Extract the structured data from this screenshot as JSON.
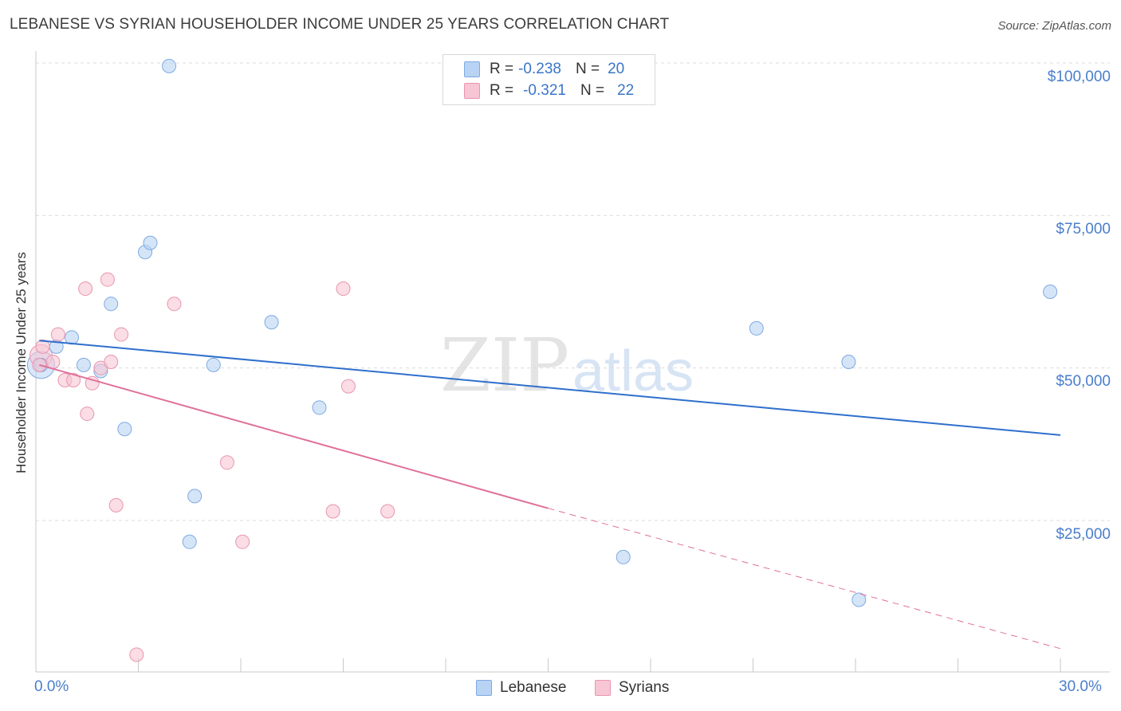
{
  "title": "LEBANESE VS SYRIAN HOUSEHOLDER INCOME UNDER 25 YEARS CORRELATION CHART",
  "source": "Source: ZipAtlas.com",
  "watermark": {
    "zip": "ZIP",
    "atlas": "atlas"
  },
  "colors": {
    "lebanese_fill": "#b9d3f4",
    "lebanese_stroke": "#7eaae3",
    "lebanese_line": "#2f6fcc",
    "syrians_fill": "#f7c6d4",
    "syrians_stroke": "#e996b0",
    "syrians_line": "#e0709a",
    "tick_text": "#4a7ecb"
  },
  "legend": {
    "lebanese": {
      "r_label": "R =",
      "r_value": "-0.238",
      "n_label": "N =",
      "n_value": "20"
    },
    "syrians": {
      "r_label": "R =",
      "r_value": "-0.321",
      "n_label": "N =",
      "n_value": "22"
    }
  },
  "chart_data": {
    "type": "scatter",
    "ylabel": "Householder Income Under 25 years",
    "xlim": [
      0,
      30
    ],
    "ylim": [
      0,
      105000
    ],
    "x_tick_labels": {
      "left": "0.0%",
      "right": "30.0%"
    },
    "y_ticks": [
      {
        "value": 100000,
        "label": "$100,000"
      },
      {
        "value": 75000,
        "label": "$75,000"
      },
      {
        "value": 50000,
        "label": "$50,000"
      },
      {
        "value": 25000,
        "label": "$25,000"
      }
    ],
    "grid": true,
    "legend_position": "bottom-center",
    "series": [
      {
        "name": "Lebanese",
        "points": [
          [
            0.15,
            50500
          ],
          [
            0.6,
            53500
          ],
          [
            1.05,
            55000
          ],
          [
            1.4,
            50500
          ],
          [
            1.9,
            49500
          ],
          [
            2.2,
            60500
          ],
          [
            2.6,
            40000
          ],
          [
            3.2,
            69000
          ],
          [
            3.35,
            70500
          ],
          [
            3.9,
            99500
          ],
          [
            4.5,
            21500
          ],
          [
            4.65,
            29000
          ],
          [
            5.2,
            50500
          ],
          [
            6.9,
            57500
          ],
          [
            8.3,
            43500
          ],
          [
            17.2,
            19000
          ],
          [
            21.1,
            56500
          ],
          [
            23.8,
            51000
          ],
          [
            24.1,
            12000
          ],
          [
            29.7,
            62500
          ]
        ],
        "trend": {
          "x0": 0.1,
          "y0": 54500,
          "x1": 30,
          "y1": 39000
        }
      },
      {
        "name": "Syrians",
        "points": [
          [
            0.2,
            53500
          ],
          [
            0.5,
            51000
          ],
          [
            0.65,
            55500
          ],
          [
            0.85,
            48000
          ],
          [
            1.1,
            48000
          ],
          [
            1.45,
            63000
          ],
          [
            1.5,
            42500
          ],
          [
            1.65,
            47500
          ],
          [
            1.9,
            50000
          ],
          [
            2.1,
            64500
          ],
          [
            2.2,
            51000
          ],
          [
            2.35,
            27500
          ],
          [
            2.5,
            55500
          ],
          [
            2.95,
            3000
          ],
          [
            4.05,
            60500
          ],
          [
            5.6,
            34500
          ],
          [
            6.05,
            21500
          ],
          [
            8.7,
            26500
          ],
          [
            9.0,
            63000
          ],
          [
            9.15,
            47000
          ],
          [
            10.3,
            26500
          ],
          [
            0.1,
            50500
          ]
        ],
        "trend": {
          "x0": 0.1,
          "y0": 50500,
          "x1": 15,
          "y1": 27000,
          "dashed_to": {
            "x": 30,
            "y": 4000
          }
        }
      }
    ]
  },
  "bottom_legend": {
    "lebanese": "Lebanese",
    "syrians": "Syrians"
  }
}
